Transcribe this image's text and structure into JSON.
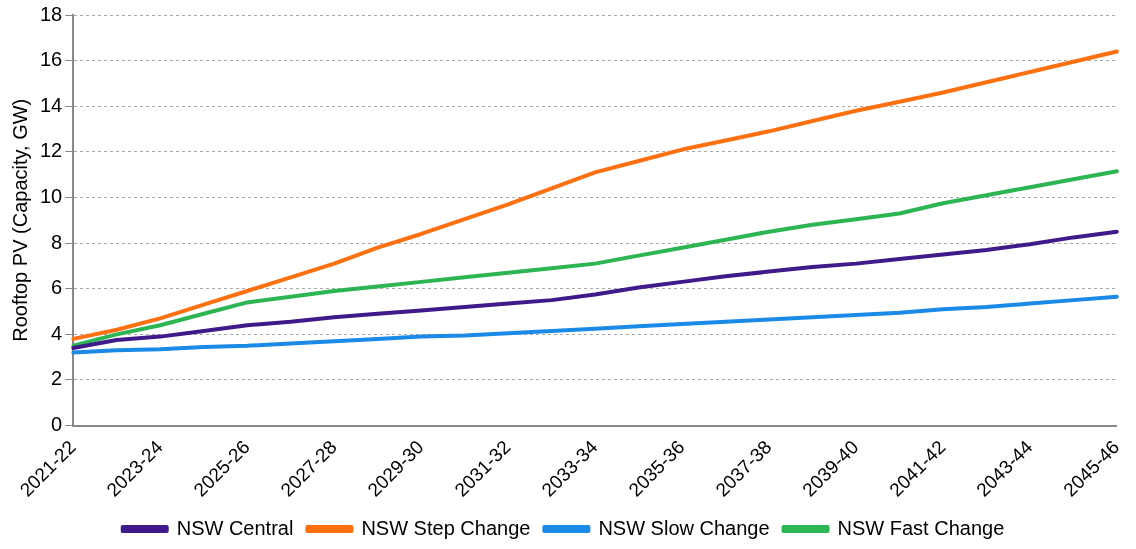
{
  "chart_data": {
    "type": "line",
    "ylabel": "Rooftop PV (Capacity, GW)",
    "categories": [
      "2021-22",
      null,
      "2023-24",
      null,
      "2025-26",
      null,
      "2027-28",
      null,
      "2029-30",
      null,
      "2031-32",
      null,
      "2033-34",
      null,
      "2035-36",
      null,
      "2037-38",
      null,
      "2039-40",
      null,
      "2041-42",
      null,
      "2043-44",
      null,
      "2045-46"
    ],
    "series": [
      {
        "name": "NSW Central",
        "color": "#3f1a8a",
        "values": [
          3.4,
          3.75,
          3.9,
          4.15,
          4.4,
          4.55,
          4.75,
          4.9,
          5.05,
          5.2,
          5.35,
          5.5,
          5.75,
          6.05,
          6.3,
          6.55,
          6.75,
          6.95,
          7.1,
          7.3,
          7.5,
          7.7,
          7.95,
          8.25,
          8.5
        ]
      },
      {
        "name": "NSW Step Change",
        "color": "#ff7010",
        "values": [
          3.8,
          4.2,
          4.7,
          5.3,
          5.9,
          6.5,
          7.1,
          7.8,
          8.4,
          9.05,
          9.7,
          10.4,
          11.1,
          11.6,
          12.1,
          12.5,
          12.9,
          13.35,
          13.8,
          14.2,
          14.6,
          15.05,
          15.5,
          15.95,
          16.4
        ]
      },
      {
        "name": "NSW Slow Change",
        "color": "#1a8ae6",
        "values": [
          3.2,
          3.3,
          3.35,
          3.45,
          3.5,
          3.6,
          3.7,
          3.8,
          3.9,
          3.95,
          4.05,
          4.15,
          4.25,
          4.35,
          4.45,
          4.55,
          4.65,
          4.75,
          4.85,
          4.95,
          5.1,
          5.2,
          5.35,
          5.5,
          5.65
        ]
      },
      {
        "name": "NSW Fast Change",
        "color": "#2db553",
        "values": [
          3.5,
          4.0,
          4.4,
          4.9,
          5.4,
          5.65,
          5.9,
          6.1,
          6.3,
          6.5,
          6.7,
          6.9,
          7.1,
          7.45,
          7.8,
          8.15,
          8.5,
          8.8,
          9.05,
          9.3,
          9.75,
          10.1,
          10.45,
          10.8,
          11.15
        ]
      }
    ],
    "ylim": [
      0,
      18
    ],
    "yticks": [
      0,
      2,
      4,
      6,
      8,
      10,
      12,
      14,
      16,
      18
    ],
    "grid": "y",
    "legend": "bottom",
    "marker": "none",
    "line_style": "solid"
  }
}
